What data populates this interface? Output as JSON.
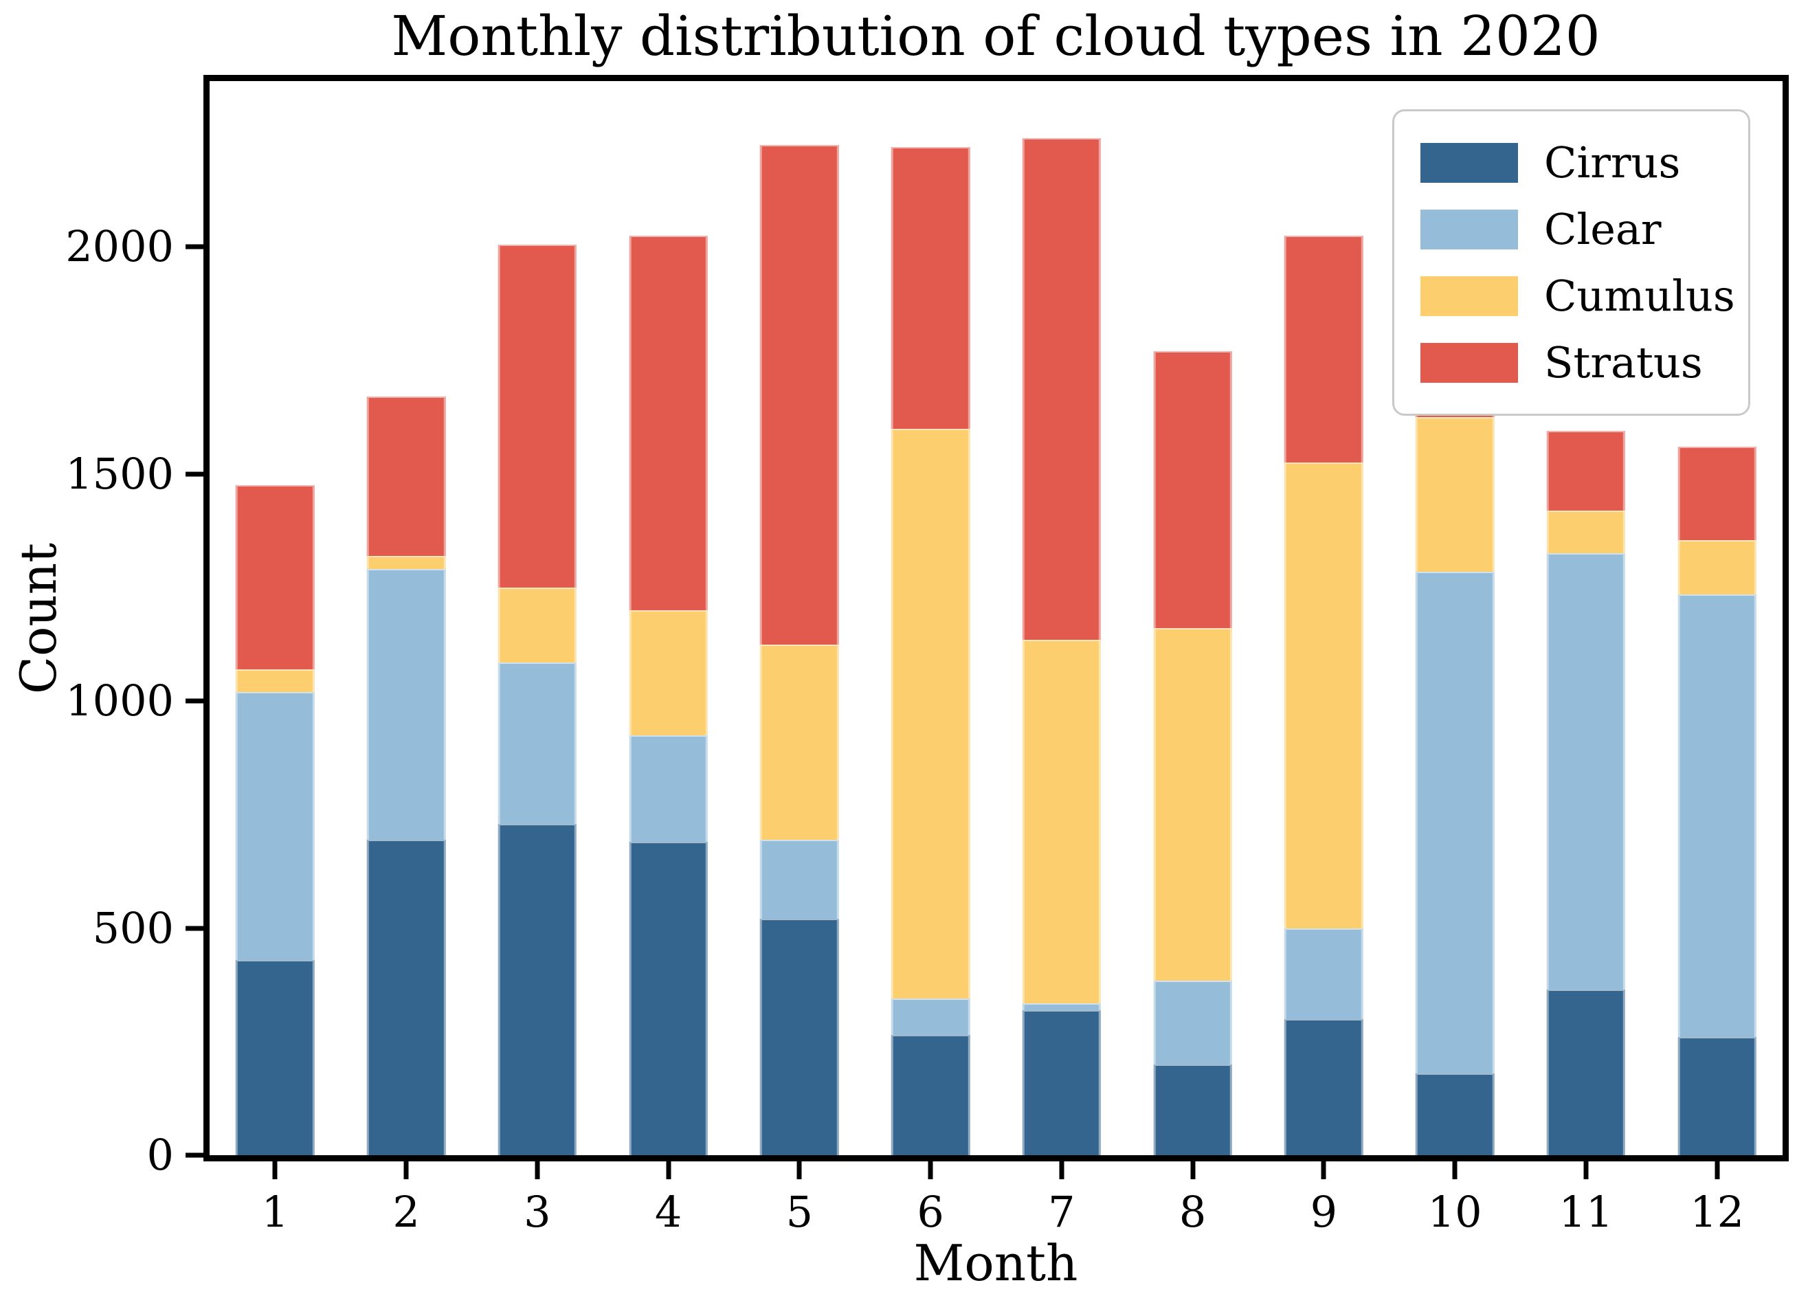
{
  "figure": {
    "background": "#ffffff"
  },
  "chart_data": {
    "type": "bar",
    "stacked": true,
    "title": "Monthly distribution of cloud types in 2020",
    "xlabel": "Month",
    "ylabel": "Count",
    "categories": [
      "1",
      "2",
      "3",
      "4",
      "5",
      "6",
      "7",
      "8",
      "9",
      "10",
      "11",
      "12"
    ],
    "series": [
      {
        "name": "Cirrus",
        "color": "#33658E",
        "values": [
          430,
          695,
          730,
          690,
          520,
          265,
          320,
          200,
          300,
          180,
          365,
          260
        ]
      },
      {
        "name": "Clear",
        "color": "#95BDD9",
        "values": [
          590,
          595,
          355,
          235,
          175,
          80,
          15,
          185,
          200,
          1105,
          960,
          975
        ]
      },
      {
        "name": "Cumulus",
        "color": "#FCCE6E",
        "values": [
          50,
          30,
          165,
          275,
          430,
          1255,
          800,
          775,
          1025,
          340,
          95,
          120
        ]
      },
      {
        "name": "Stratus",
        "color": "#E2594D",
        "values": [
          405,
          350,
          755,
          825,
          1100,
          620,
          1105,
          610,
          500,
          8,
          175,
          205
        ]
      }
    ],
    "totals": [
      1475,
      1670,
      2005,
      2025,
      2225,
      2220,
      2240,
      1770,
      2025,
      1633,
      1595,
      1560
    ],
    "ylim": [
      0,
      2365
    ],
    "yticks": [
      0,
      500,
      1000,
      1500,
      2000
    ],
    "grid": false,
    "legend_position": "upper right",
    "axis_color": "#000000"
  }
}
